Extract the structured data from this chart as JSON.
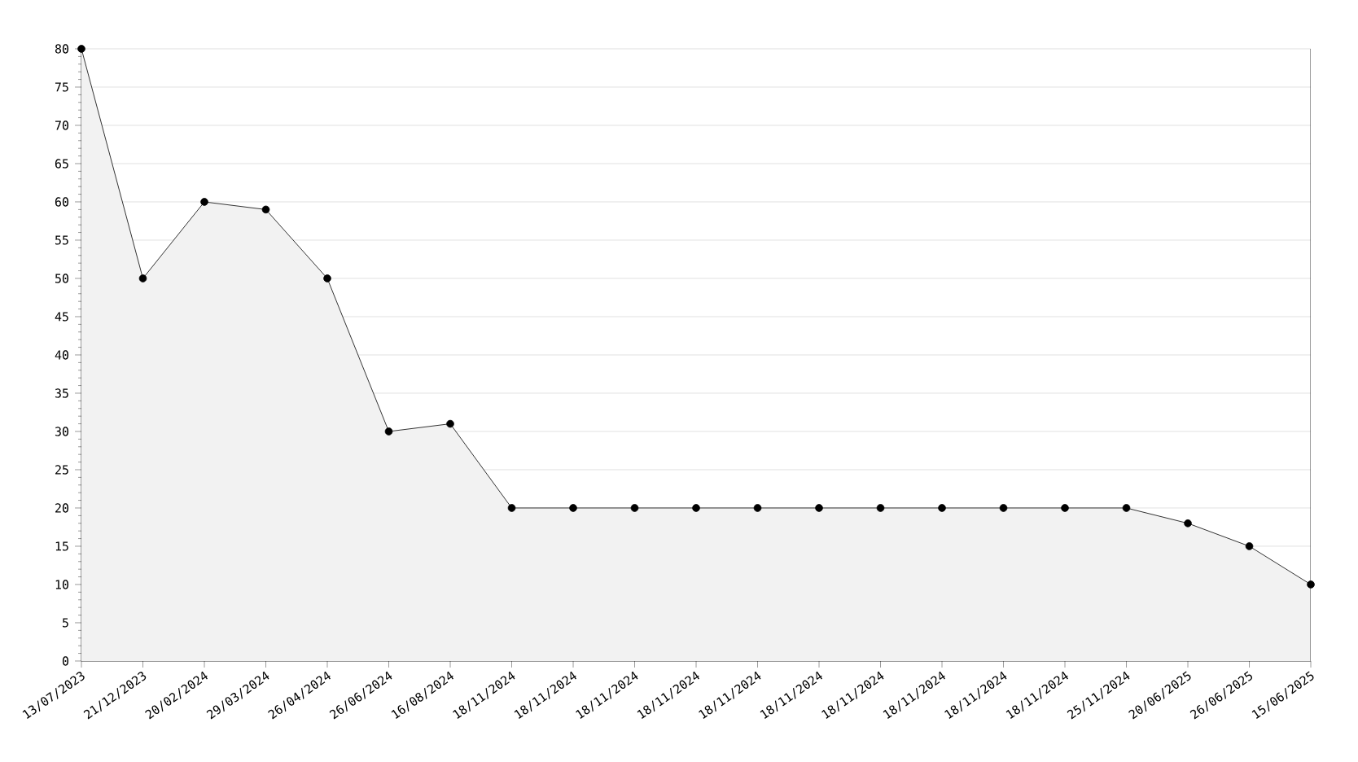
{
  "chart_data": {
    "type": "area",
    "categories": [
      "13/07/2023",
      "21/12/2023",
      "20/02/2024",
      "29/03/2024",
      "26/04/2024",
      "26/06/2024",
      "16/08/2024",
      "18/11/2024",
      "18/11/2024",
      "18/11/2024",
      "18/11/2024",
      "18/11/2024",
      "18/11/2024",
      "18/11/2024",
      "18/11/2024",
      "18/11/2024",
      "18/11/2024",
      "25/11/2024",
      "20/06/2025",
      "26/06/2025",
      "15/06/2025"
    ],
    "series": [
      {
        "color": "#000000",
        "values": [
          80,
          50,
          60,
          59,
          50,
          30,
          31,
          20,
          20,
          20,
          20,
          20,
          20,
          20,
          20,
          20,
          20,
          20,
          18,
          15,
          10
        ]
      }
    ],
    "ylim": [
      0,
      80
    ],
    "yticks": [
      0,
      5,
      10,
      15,
      20,
      25,
      30,
      35,
      40,
      45,
      50,
      55,
      60,
      65,
      70,
      75,
      80
    ],
    "grid": "y",
    "marker": "circle",
    "line_style": "solid"
  }
}
